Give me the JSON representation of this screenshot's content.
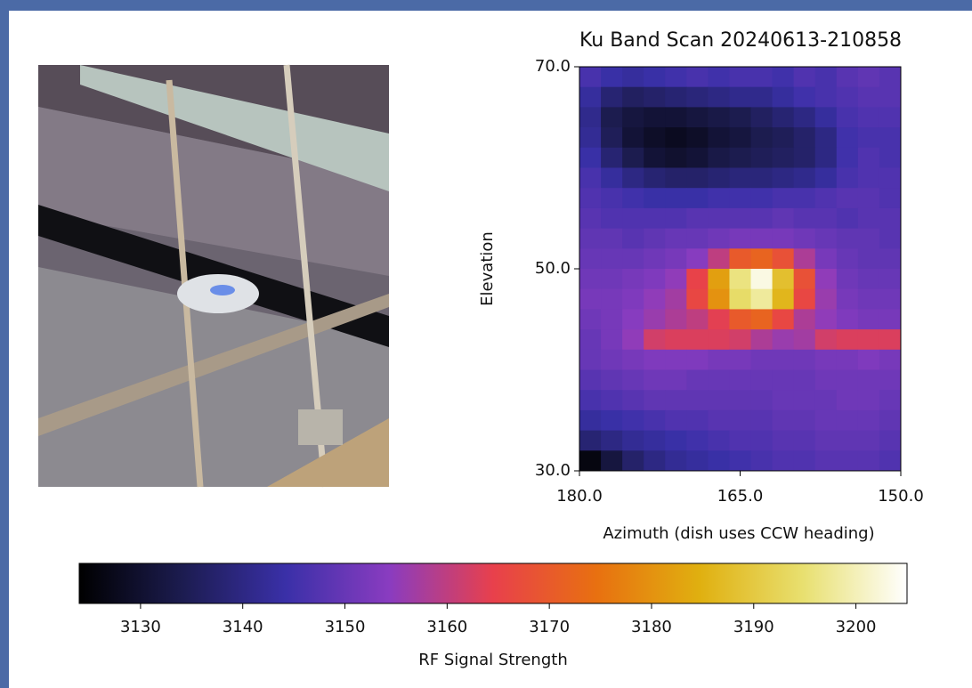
{
  "chart_data": {
    "type": "heatmap",
    "title": "Ku Band Scan 20240613-210858",
    "xlabel": "Azimuth (dish uses CCW heading)",
    "ylabel": "Elevation",
    "x": [
      179,
      177,
      175,
      173,
      171,
      169,
      167,
      165,
      163,
      161,
      159,
      157,
      155,
      153,
      151
    ],
    "y": [
      69,
      67,
      65,
      63,
      61,
      59,
      57,
      55,
      53,
      51,
      49,
      47,
      45,
      43,
      41,
      39,
      37,
      35,
      33,
      31
    ],
    "values": [
      [
        3146,
        3144,
        3143,
        3144,
        3145,
        3146,
        3145,
        3146,
        3146,
        3145,
        3147,
        3146,
        3148,
        3149,
        3148
      ],
      [
        3143,
        3138,
        3136,
        3137,
        3138,
        3139,
        3140,
        3141,
        3141,
        3143,
        3145,
        3146,
        3147,
        3148,
        3148
      ],
      [
        3141,
        3134,
        3132,
        3131,
        3131,
        3132,
        3133,
        3134,
        3136,
        3138,
        3140,
        3143,
        3146,
        3147,
        3147
      ],
      [
        3142,
        3135,
        3131,
        3129,
        3128,
        3129,
        3131,
        3132,
        3134,
        3135,
        3137,
        3140,
        3145,
        3146,
        3146
      ],
      [
        3144,
        3138,
        3134,
        3131,
        3130,
        3131,
        3133,
        3134,
        3135,
        3136,
        3137,
        3140,
        3145,
        3147,
        3146
      ],
      [
        3146,
        3143,
        3140,
        3138,
        3137,
        3137,
        3138,
        3139,
        3139,
        3140,
        3141,
        3143,
        3146,
        3147,
        3147
      ],
      [
        3147,
        3146,
        3145,
        3144,
        3144,
        3144,
        3145,
        3145,
        3145,
        3146,
        3146,
        3147,
        3148,
        3148,
        3147
      ],
      [
        3148,
        3147,
        3147,
        3147,
        3147,
        3148,
        3148,
        3148,
        3148,
        3149,
        3148,
        3148,
        3147,
        3148,
        3148
      ],
      [
        3149,
        3149,
        3148,
        3149,
        3150,
        3150,
        3151,
        3152,
        3152,
        3152,
        3151,
        3150,
        3149,
        3149,
        3148
      ],
      [
        3150,
        3150,
        3150,
        3151,
        3152,
        3154,
        3160,
        3170,
        3172,
        3168,
        3158,
        3152,
        3150,
        3149,
        3149
      ],
      [
        3151,
        3151,
        3152,
        3153,
        3155,
        3165,
        3182,
        3196,
        3203,
        3188,
        3168,
        3155,
        3151,
        3150,
        3150
      ],
      [
        3152,
        3152,
        3153,
        3155,
        3157,
        3166,
        3180,
        3194,
        3198,
        3186,
        3166,
        3156,
        3152,
        3151,
        3151
      ],
      [
        3151,
        3152,
        3154,
        3156,
        3158,
        3160,
        3164,
        3170,
        3172,
        3166,
        3158,
        3155,
        3153,
        3152,
        3152
      ],
      [
        3150,
        3152,
        3155,
        3162,
        3163,
        3163,
        3163,
        3162,
        3158,
        3156,
        3157,
        3162,
        3163,
        3163,
        3163
      ],
      [
        3150,
        3151,
        3152,
        3153,
        3153,
        3153,
        3152,
        3152,
        3151,
        3151,
        3151,
        3152,
        3152,
        3153,
        3152
      ],
      [
        3148,
        3149,
        3150,
        3151,
        3151,
        3150,
        3150,
        3150,
        3150,
        3150,
        3150,
        3151,
        3151,
        3151,
        3151
      ],
      [
        3146,
        3147,
        3148,
        3149,
        3149,
        3149,
        3149,
        3149,
        3149,
        3150,
        3150,
        3150,
        3151,
        3151,
        3150
      ],
      [
        3143,
        3144,
        3145,
        3146,
        3147,
        3147,
        3148,
        3148,
        3148,
        3149,
        3149,
        3150,
        3150,
        3150,
        3149
      ],
      [
        3138,
        3140,
        3142,
        3143,
        3144,
        3145,
        3146,
        3147,
        3147,
        3148,
        3148,
        3149,
        3149,
        3149,
        3148
      ],
      [
        3126,
        3132,
        3137,
        3140,
        3142,
        3143,
        3144,
        3145,
        3146,
        3147,
        3147,
        3148,
        3148,
        3148,
        3147
      ]
    ],
    "xlim": [
      180,
      150
    ],
    "ylim": [
      30,
      70
    ],
    "xticks": [
      {
        "value": 180,
        "label": "180.0"
      },
      {
        "value": 165,
        "label": "165.0"
      },
      {
        "value": 150,
        "label": "150.0"
      }
    ],
    "yticks": [
      {
        "value": 30,
        "label": "30.0"
      },
      {
        "value": 50,
        "label": "50.0"
      },
      {
        "value": 70,
        "label": "70.0"
      }
    ],
    "colorbar": {
      "label": "RF Signal Strength",
      "lim": [
        3124,
        3205
      ],
      "ticks": [
        3130,
        3140,
        3150,
        3160,
        3170,
        3180,
        3190,
        3200
      ],
      "colors": [
        "#000000",
        "#1c1c50",
        "#3a30a8",
        "#8a3cc0",
        "#e8404c",
        "#e87010",
        "#e0b010",
        "#e8e070",
        "#ffffff"
      ]
    }
  }
}
